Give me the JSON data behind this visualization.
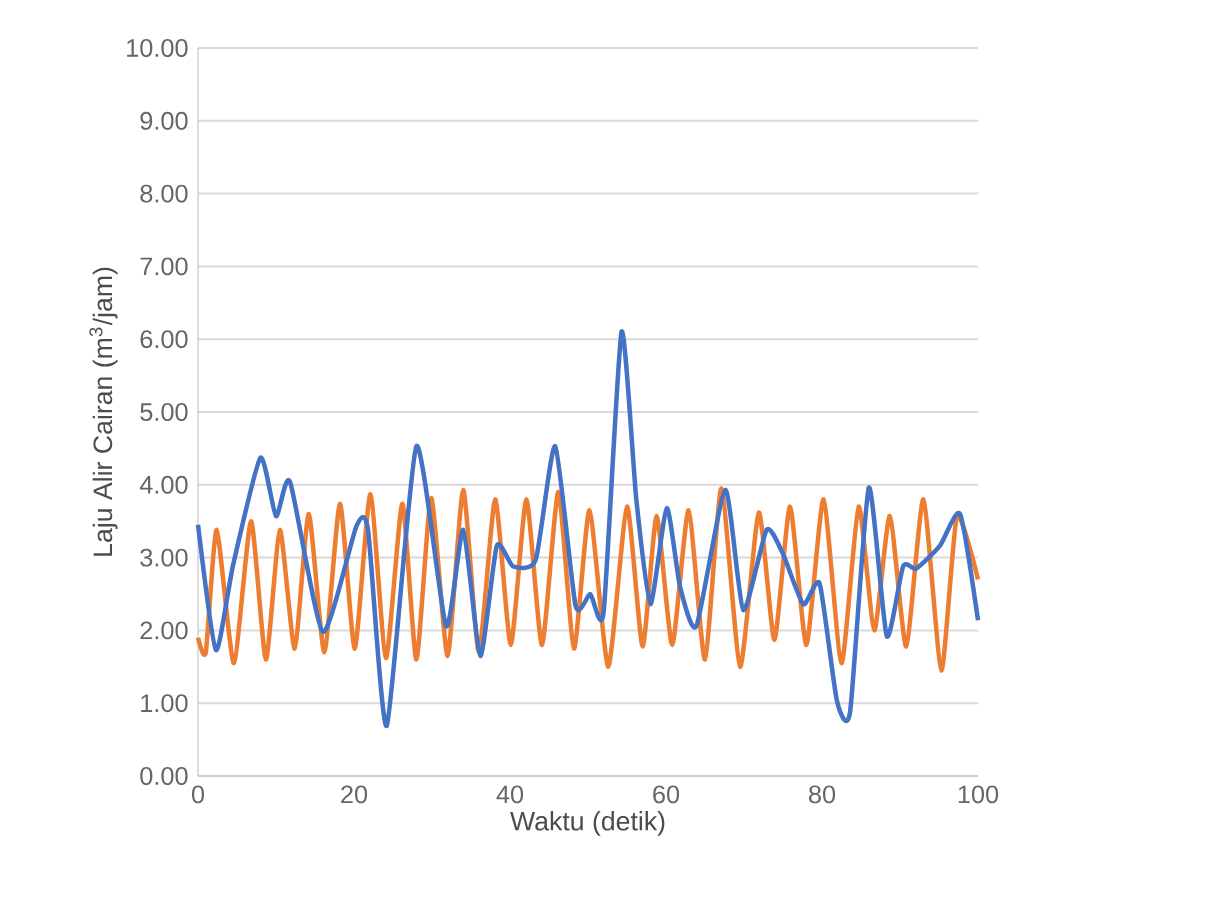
{
  "chart_data": {
    "type": "line",
    "xlabel": "Waktu (detik)",
    "ylabel": "Laju Alir Cairan (m$^{3}$/jam)",
    "xlim": [
      0,
      100
    ],
    "xticks": [
      0,
      20,
      40,
      60,
      80,
      100
    ],
    "ylim": [
      0,
      10
    ],
    "yticks": [
      {
        "value": 0,
        "label": "0.00"
      },
      {
        "value": 1,
        "label": "1.00"
      },
      {
        "value": 2,
        "label": "2.00"
      },
      {
        "value": 3,
        "label": "3.00"
      },
      {
        "value": 4,
        "label": "4.00"
      },
      {
        "value": 5,
        "label": "5.00"
      },
      {
        "value": 6,
        "label": "6.00"
      },
      {
        "value": 7,
        "label": "7.00"
      },
      {
        "value": 8,
        "label": "8.00"
      },
      {
        "value": 9,
        "label": "9.00"
      },
      {
        "value": 10,
        "label": "10.00"
      }
    ],
    "grid": "y",
    "marker": "none",
    "line_style": "solid",
    "series": [
      {
        "color": "#ed7d31",
        "x": [
          0,
          1,
          2.4,
          4.6,
          6.8,
          8.7,
          10.5,
          12.4,
          14.2,
          16.2,
          18.2,
          20.1,
          22.1,
          24.1,
          26.2,
          28,
          29.9,
          32,
          34,
          36,
          38.1,
          40.1,
          42.1,
          44.1,
          46.2,
          48.2,
          50.2,
          52.6,
          55,
          57,
          58.8,
          60.8,
          62.9,
          65,
          67.1,
          69.5,
          71.9,
          73.9,
          75.9,
          78,
          80.2,
          82.5,
          84.7,
          86.7,
          88.7,
          90.8,
          93,
          95.3,
          97.3,
          100
        ],
        "values": [
          1.9,
          1.7,
          3.38,
          1.55,
          3.5,
          1.6,
          3.38,
          1.75,
          3.6,
          1.7,
          3.74,
          1.75,
          3.87,
          1.62,
          3.74,
          1.6,
          3.82,
          1.65,
          3.93,
          1.7,
          3.8,
          1.8,
          3.8,
          1.8,
          3.9,
          1.75,
          3.65,
          1.5,
          3.7,
          1.78,
          3.57,
          1.8,
          3.65,
          1.6,
          3.95,
          1.5,
          3.62,
          1.87,
          3.7,
          1.8,
          3.8,
          1.55,
          3.7,
          2.0,
          3.57,
          1.78,
          3.8,
          1.45,
          3.57,
          2.7
        ]
      },
      {
        "color": "#4472c4",
        "x": [
          0,
          2.3,
          4.5,
          8,
          10,
          11.8,
          16,
          20.3,
          21.8,
          24.2,
          28,
          31.8,
          34,
          36.2,
          38.3,
          40.4,
          43.3,
          45.8,
          48.4,
          50.3,
          52,
          54.3,
          56.2,
          58,
          60.1,
          61.8,
          63.9,
          67.6,
          69.9,
          72.9,
          75,
          77.6,
          79.7,
          81.9,
          83.6,
          86,
          88.3,
          90.4,
          92.1,
          95.1,
          97.7,
          100
        ],
        "values": [
          3.45,
          1.73,
          2.9,
          4.37,
          3.57,
          4.04,
          1.98,
          3.43,
          3.38,
          0.69,
          4.53,
          2.06,
          3.38,
          1.65,
          3.16,
          2.88,
          2.97,
          4.53,
          2.34,
          2.5,
          2.25,
          6.1,
          3.79,
          2.36,
          3.68,
          2.6,
          2.06,
          3.93,
          2.28,
          3.38,
          3.05,
          2.36,
          2.64,
          1.04,
          0.88,
          3.96,
          1.92,
          2.88,
          2.85,
          3.16,
          3.6,
          2.14
        ]
      }
    ]
  }
}
